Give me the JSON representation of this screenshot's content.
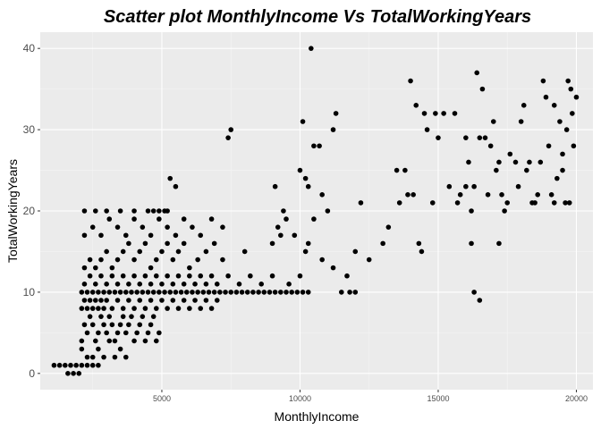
{
  "chart_data": {
    "type": "scatter",
    "title": "Scatter plot MonthlyIncome  Vs  TotalWorkingYears",
    "xlabel": "MonthlyIncome",
    "ylabel": "TotalWorkingYears",
    "xlim": [
      600,
      20600
    ],
    "ylim": [
      -2,
      42
    ],
    "x_ticks": [
      5000,
      10000,
      15000,
      20000
    ],
    "x_tick_labels": [
      "5000",
      "10000",
      "15000",
      "20000"
    ],
    "y_ticks": [
      0,
      10,
      20,
      30,
      40
    ],
    "y_tick_labels": [
      "0",
      "10",
      "20",
      "30",
      "40"
    ],
    "grid": true,
    "legend": "none",
    "colors": {
      "panel": "#ebebeb",
      "grid_major": "#ffffff",
      "grid_minor": "#f5f5f5",
      "point": "#000000",
      "tick_label": "#4d4d4d"
    },
    "points": [
      [
        1100,
        1
      ],
      [
        1300,
        1
      ],
      [
        1500,
        1
      ],
      [
        1700,
        1
      ],
      [
        1900,
        1
      ],
      [
        2100,
        1
      ],
      [
        2300,
        1
      ],
      [
        2500,
        1
      ],
      [
        2700,
        1
      ],
      [
        1600,
        0
      ],
      [
        1800,
        0
      ],
      [
        2000,
        0
      ],
      [
        2100,
        3
      ],
      [
        2300,
        2
      ],
      [
        2500,
        2
      ],
      [
        2700,
        3
      ],
      [
        2900,
        2
      ],
      [
        3100,
        4
      ],
      [
        3300,
        2
      ],
      [
        3500,
        3
      ],
      [
        3700,
        2
      ],
      [
        2100,
        4
      ],
      [
        2200,
        6
      ],
      [
        2300,
        5
      ],
      [
        2400,
        7
      ],
      [
        2500,
        6
      ],
      [
        2600,
        4
      ],
      [
        2700,
        5
      ],
      [
        2800,
        7
      ],
      [
        2900,
        6
      ],
      [
        3000,
        5
      ],
      [
        3100,
        7
      ],
      [
        3200,
        6
      ],
      [
        3300,
        4
      ],
      [
        3400,
        5
      ],
      [
        3500,
        6
      ],
      [
        3600,
        7
      ],
      [
        3700,
        5
      ],
      [
        3800,
        6
      ],
      [
        3900,
        7
      ],
      [
        4000,
        4
      ],
      [
        4100,
        5
      ],
      [
        4200,
        6
      ],
      [
        4300,
        7
      ],
      [
        4400,
        4
      ],
      [
        4500,
        5
      ],
      [
        4600,
        6
      ],
      [
        4700,
        7
      ],
      [
        4800,
        4
      ],
      [
        4900,
        5
      ],
      [
        2100,
        8
      ],
      [
        2200,
        9
      ],
      [
        2300,
        8
      ],
      [
        2400,
        9
      ],
      [
        2500,
        8
      ],
      [
        2600,
        9
      ],
      [
        2700,
        8
      ],
      [
        2800,
        9
      ],
      [
        2900,
        8
      ],
      [
        3000,
        9
      ],
      [
        3200,
        8
      ],
      [
        3400,
        9
      ],
      [
        3600,
        8
      ],
      [
        3800,
        9
      ],
      [
        4000,
        8
      ],
      [
        4200,
        9
      ],
      [
        4400,
        8
      ],
      [
        4600,
        9
      ],
      [
        4800,
        8
      ],
      [
        5000,
        9
      ],
      [
        5200,
        8
      ],
      [
        5400,
        9
      ],
      [
        5600,
        8
      ],
      [
        5800,
        9
      ],
      [
        6000,
        8
      ],
      [
        6200,
        9
      ],
      [
        6400,
        8
      ],
      [
        6600,
        9
      ],
      [
        6800,
        8
      ],
      [
        7000,
        9
      ],
      [
        2100,
        10
      ],
      [
        2300,
        10
      ],
      [
        2500,
        10
      ],
      [
        2700,
        10
      ],
      [
        2900,
        10
      ],
      [
        3100,
        10
      ],
      [
        3300,
        10
      ],
      [
        3500,
        10
      ],
      [
        3700,
        10
      ],
      [
        3900,
        10
      ],
      [
        4100,
        10
      ],
      [
        4300,
        10
      ],
      [
        4500,
        10
      ],
      [
        4700,
        10
      ],
      [
        4900,
        10
      ],
      [
        5100,
        10
      ],
      [
        5300,
        10
      ],
      [
        5500,
        10
      ],
      [
        5700,
        10
      ],
      [
        5900,
        10
      ],
      [
        6100,
        10
      ],
      [
        6300,
        10
      ],
      [
        6500,
        10
      ],
      [
        6700,
        10
      ],
      [
        6900,
        10
      ],
      [
        7100,
        10
      ],
      [
        7300,
        10
      ],
      [
        7500,
        10
      ],
      [
        7700,
        10
      ],
      [
        7900,
        10
      ],
      [
        8100,
        10
      ],
      [
        8300,
        10
      ],
      [
        8500,
        10
      ],
      [
        8700,
        10
      ],
      [
        8900,
        10
      ],
      [
        9100,
        10
      ],
      [
        9300,
        10
      ],
      [
        9500,
        10
      ],
      [
        9700,
        10
      ],
      [
        9900,
        10
      ],
      [
        10100,
        10
      ],
      [
        10300,
        10
      ],
      [
        11500,
        10
      ],
      [
        11800,
        10
      ],
      [
        12000,
        10
      ],
      [
        2200,
        11
      ],
      [
        2400,
        12
      ],
      [
        2600,
        11
      ],
      [
        2800,
        12
      ],
      [
        3000,
        11
      ],
      [
        3200,
        12
      ],
      [
        3400,
        11
      ],
      [
        3600,
        12
      ],
      [
        3800,
        11
      ],
      [
        4000,
        12
      ],
      [
        4200,
        11
      ],
      [
        4400,
        12
      ],
      [
        4600,
        11
      ],
      [
        4800,
        12
      ],
      [
        5000,
        11
      ],
      [
        5200,
        12
      ],
      [
        5400,
        11
      ],
      [
        5600,
        12
      ],
      [
        5800,
        11
      ],
      [
        6000,
        12
      ],
      [
        6200,
        11
      ],
      [
        6400,
        12
      ],
      [
        6600,
        11
      ],
      [
        6800,
        12
      ],
      [
        7000,
        11
      ],
      [
        7400,
        12
      ],
      [
        7800,
        11
      ],
      [
        8200,
        12
      ],
      [
        8600,
        11
      ],
      [
        9000,
        12
      ],
      [
        9600,
        11
      ],
      [
        10000,
        12
      ],
      [
        2200,
        13
      ],
      [
        2400,
        14
      ],
      [
        2600,
        13
      ],
      [
        2800,
        14
      ],
      [
        3000,
        15
      ],
      [
        3200,
        13
      ],
      [
        3400,
        14
      ],
      [
        3600,
        15
      ],
      [
        3800,
        16
      ],
      [
        4000,
        14
      ],
      [
        4200,
        15
      ],
      [
        4400,
        16
      ],
      [
        4600,
        13
      ],
      [
        4800,
        14
      ],
      [
        5000,
        15
      ],
      [
        5200,
        16
      ],
      [
        5400,
        14
      ],
      [
        5600,
        15
      ],
      [
        5800,
        16
      ],
      [
        6000,
        13
      ],
      [
        6300,
        14
      ],
      [
        6600,
        15
      ],
      [
        6900,
        16
      ],
      [
        7200,
        14
      ],
      [
        8000,
        15
      ],
      [
        9000,
        16
      ],
      [
        9300,
        17
      ],
      [
        10200,
        15
      ],
      [
        10800,
        14
      ],
      [
        11200,
        13
      ],
      [
        2200,
        17
      ],
      [
        2500,
        18
      ],
      [
        2800,
        17
      ],
      [
        3100,
        19
      ],
      [
        3400,
        18
      ],
      [
        3700,
        17
      ],
      [
        4000,
        19
      ],
      [
        4300,
        18
      ],
      [
        4600,
        17
      ],
      [
        4900,
        19
      ],
      [
        5200,
        18
      ],
      [
        5500,
        17
      ],
      [
        5800,
        19
      ],
      [
        6100,
        18
      ],
      [
        6400,
        17
      ],
      [
        6800,
        19
      ],
      [
        7200,
        18
      ],
      [
        9200,
        18
      ],
      [
        9800,
        17
      ],
      [
        10500,
        19
      ],
      [
        10300,
        16
      ],
      [
        9500,
        19
      ],
      [
        2200,
        20
      ],
      [
        2600,
        20
      ],
      [
        3000,
        20
      ],
      [
        3500,
        20
      ],
      [
        4000,
        20
      ],
      [
        4500,
        20
      ],
      [
        4700,
        20
      ],
      [
        4900,
        20
      ],
      [
        5100,
        20
      ],
      [
        5200,
        20
      ],
      [
        5300,
        24
      ],
      [
        5500,
        23
      ],
      [
        7400,
        29
      ],
      [
        7500,
        30
      ],
      [
        9100,
        23
      ],
      [
        9400,
        20
      ],
      [
        10000,
        25
      ],
      [
        10200,
        24
      ],
      [
        10300,
        23
      ],
      [
        10500,
        28
      ],
      [
        10700,
        28
      ],
      [
        10800,
        22
      ],
      [
        11000,
        20
      ],
      [
        11200,
        30
      ],
      [
        11300,
        32
      ],
      [
        10100,
        31
      ],
      [
        10400,
        40
      ],
      [
        11700,
        12
      ],
      [
        12000,
        15
      ],
      [
        12200,
        21
      ],
      [
        12500,
        14
      ],
      [
        13000,
        16
      ],
      [
        13200,
        18
      ],
      [
        13600,
        21
      ],
      [
        13500,
        25
      ],
      [
        13800,
        25
      ],
      [
        13900,
        22
      ],
      [
        14000,
        36
      ],
      [
        14200,
        33
      ],
      [
        14500,
        32
      ],
      [
        14600,
        30
      ],
      [
        14900,
        32
      ],
      [
        15000,
        29
      ],
      [
        15200,
        32
      ],
      [
        15600,
        32
      ],
      [
        14300,
        16
      ],
      [
        14400,
        15
      ],
      [
        14100,
        22
      ],
      [
        14800,
        21
      ],
      [
        16000,
        23
      ],
      [
        16300,
        23
      ],
      [
        16500,
        29
      ],
      [
        16800,
        22
      ],
      [
        17000,
        31
      ],
      [
        17200,
        26
      ],
      [
        17400,
        20
      ],
      [
        16400,
        37
      ],
      [
        16600,
        35
      ],
      [
        16700,
        29
      ],
      [
        16900,
        28
      ],
      [
        17100,
        25
      ],
      [
        17300,
        22
      ],
      [
        17500,
        21
      ],
      [
        17600,
        27
      ],
      [
        17900,
        23
      ],
      [
        18100,
        33
      ],
      [
        18200,
        25
      ],
      [
        18300,
        26
      ],
      [
        18500,
        21
      ],
      [
        18600,
        22
      ],
      [
        18700,
        26
      ],
      [
        18800,
        36
      ],
      [
        18900,
        34
      ],
      [
        19000,
        28
      ],
      [
        19100,
        22
      ],
      [
        19200,
        33
      ],
      [
        19300,
        24
      ],
      [
        19400,
        31
      ],
      [
        19500,
        27
      ],
      [
        19600,
        21
      ],
      [
        19700,
        36
      ],
      [
        19800,
        35
      ],
      [
        19900,
        28
      ],
      [
        20000,
        34
      ],
      [
        19850,
        32
      ],
      [
        16300,
        10
      ],
      [
        16500,
        9
      ],
      [
        16200,
        16
      ],
      [
        17200,
        16
      ],
      [
        15800,
        22
      ],
      [
        15400,
        23
      ],
      [
        15700,
        21
      ],
      [
        16000,
        29
      ],
      [
        16100,
        26
      ],
      [
        16200,
        20
      ],
      [
        18000,
        31
      ],
      [
        17800,
        26
      ],
      [
        18400,
        21
      ],
      [
        19500,
        25
      ],
      [
        19200,
        21
      ],
      [
        19650,
        30
      ],
      [
        19750,
        21
      ]
    ]
  }
}
